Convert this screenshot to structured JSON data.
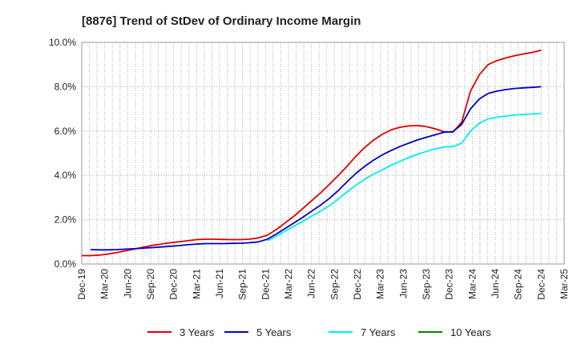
{
  "chart_data": {
    "type": "line",
    "title": "[8876]  Trend of StDev of Ordinary Income Margin",
    "xlabel": "",
    "ylabel": "",
    "x_ticks": [
      "Dec-19",
      "Mar-20",
      "Jun-20",
      "Sep-20",
      "Dec-20",
      "Mar-21",
      "Jun-21",
      "Sep-21",
      "Dec-21",
      "Mar-22",
      "Jun-22",
      "Sep-22",
      "Dec-22",
      "Mar-23",
      "Jun-23",
      "Sep-23",
      "Dec-23",
      "Mar-24",
      "Jun-24",
      "Sep-24",
      "Dec-24",
      "Mar-25"
    ],
    "y_ticks": [
      "0.0%",
      "2.0%",
      "4.0%",
      "6.0%",
      "8.0%",
      "10.0%"
    ],
    "ylim": [
      0,
      10
    ],
    "grid": true,
    "legend_position": "bottom",
    "series": [
      {
        "name": "3 Years",
        "color": "#dd0000",
        "values": [
          0.38,
          0.38,
          0.4,
          0.45,
          0.52,
          0.6,
          0.68,
          0.76,
          0.84,
          0.9,
          0.96,
          1.0,
          1.05,
          1.1,
          1.12,
          1.12,
          1.11,
          1.1,
          1.1,
          1.12,
          1.18,
          1.3,
          1.55,
          1.85,
          2.15,
          2.5,
          2.85,
          3.2,
          3.58,
          3.98,
          4.4,
          4.85,
          5.25,
          5.58,
          5.85,
          6.05,
          6.17,
          6.23,
          6.25,
          6.2,
          6.1,
          5.97,
          5.95,
          6.4,
          7.8,
          8.55,
          9.0,
          9.18,
          9.3,
          9.4,
          9.48,
          9.55,
          9.65
        ]
      },
      {
        "name": "5 Years",
        "color": "#0000cc",
        "values": [
          null,
          0.65,
          0.64,
          0.64,
          0.65,
          0.67,
          0.69,
          0.72,
          0.74,
          0.77,
          0.8,
          0.83,
          0.87,
          0.9,
          0.92,
          0.92,
          0.92,
          0.93,
          0.94,
          0.96,
          1.0,
          1.12,
          1.35,
          1.6,
          1.85,
          2.1,
          2.38,
          2.65,
          2.95,
          3.3,
          3.7,
          4.08,
          4.4,
          4.68,
          4.92,
          5.12,
          5.3,
          5.45,
          5.6,
          5.72,
          5.83,
          5.95,
          5.97,
          6.3,
          7.0,
          7.45,
          7.7,
          7.8,
          7.87,
          7.92,
          7.95,
          7.97,
          8.0
        ]
      },
      {
        "name": "7 Years",
        "color": "#00eeee",
        "values": [
          null,
          null,
          null,
          null,
          null,
          null,
          null,
          null,
          null,
          null,
          null,
          null,
          null,
          null,
          null,
          null,
          null,
          null,
          null,
          null,
          null,
          1.05,
          1.25,
          1.48,
          1.7,
          1.92,
          2.15,
          2.38,
          2.62,
          2.92,
          3.25,
          3.55,
          3.82,
          4.05,
          4.25,
          4.45,
          4.63,
          4.8,
          4.95,
          5.08,
          5.2,
          5.28,
          5.3,
          5.45,
          6.0,
          6.35,
          6.55,
          6.62,
          6.68,
          6.72,
          6.75,
          6.77,
          6.8
        ]
      },
      {
        "name": "10 Years",
        "color": "#008800",
        "values": []
      }
    ]
  }
}
